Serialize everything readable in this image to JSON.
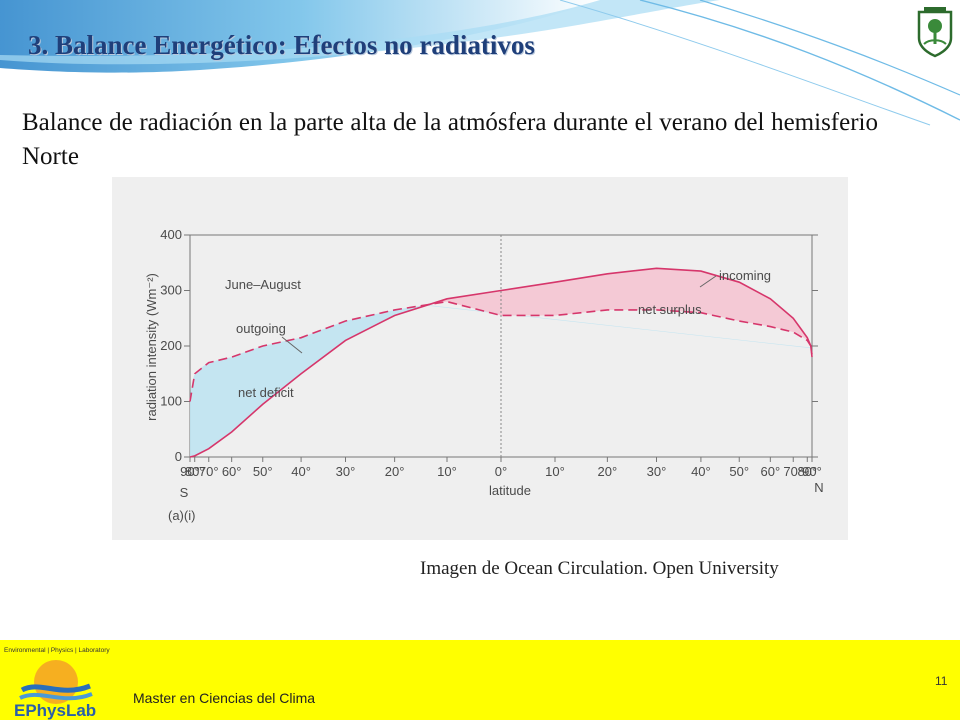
{
  "slide": {
    "title": "3.  Balance Energético: Efectos no radiativos",
    "subtitle": "Balance de radiación en la parte alta de la atmósfera durante el verano del hemisferio  Norte",
    "credit": "Imagen de  Ocean Circulation. Open University",
    "colors": {
      "title": "#1f3f7a",
      "footer": "#ffff00",
      "wave": "#4aa3d6"
    }
  },
  "footer": {
    "course": "Master en Ciencias del Clima",
    "page": "11",
    "logo_top_text": "Environmental | Physics | Laboratory",
    "logo_name": "EPhysLab"
  },
  "chart_data": {
    "type": "line",
    "period_label": "June–August",
    "ylabel": "radiation intensity (Wm⁻²)",
    "xlabel": "latitude",
    "figure_label": "(a)(i)",
    "south_label": "S",
    "north_label": "N",
    "ylim": [
      0,
      400
    ],
    "y_ticks": [
      "0",
      "100",
      "200",
      "300",
      "400"
    ],
    "x_ticks": [
      "90°",
      "80°",
      "70°",
      "60°",
      "50°",
      "40°",
      "30°",
      "20°",
      "10°",
      "0°",
      "10°",
      "20°",
      "30°",
      "40°",
      "50°",
      "60°",
      "70°",
      "80°",
      "90°"
    ],
    "x_tick_lat": [
      -90,
      -80,
      -70,
      -60,
      -50,
      -40,
      -30,
      -20,
      -10,
      0,
      10,
      20,
      30,
      40,
      50,
      60,
      70,
      80,
      90
    ],
    "x_scale": "sine of latitude",
    "series": [
      {
        "name": "incoming",
        "style": "solid",
        "color": "#d6366b",
        "lat": [
          -90,
          -80,
          -70,
          -60,
          -50,
          -40,
          -30,
          -20,
          -10,
          0,
          10,
          20,
          30,
          40,
          50,
          60,
          70,
          80,
          85,
          90
        ],
        "values": [
          0,
          2,
          15,
          45,
          95,
          150,
          210,
          255,
          285,
          300,
          315,
          330,
          340,
          335,
          315,
          285,
          250,
          215,
          200,
          180
        ]
      },
      {
        "name": "outgoing",
        "style": "dashed",
        "color": "#d6366b",
        "lat": [
          -90,
          -80,
          -70,
          -60,
          -50,
          -40,
          -30,
          -20,
          -10,
          0,
          10,
          20,
          30,
          40,
          50,
          60,
          70,
          80,
          85,
          90
        ],
        "values": [
          100,
          150,
          170,
          180,
          200,
          215,
          245,
          265,
          280,
          255,
          255,
          265,
          265,
          260,
          245,
          235,
          225,
          210,
          200,
          185
        ]
      }
    ],
    "annotations": [
      "net deficit",
      "net surplus"
    ],
    "fill_colors": {
      "net deficit": "#bfe3f1",
      "net surplus": "#f4c4d2"
    }
  }
}
